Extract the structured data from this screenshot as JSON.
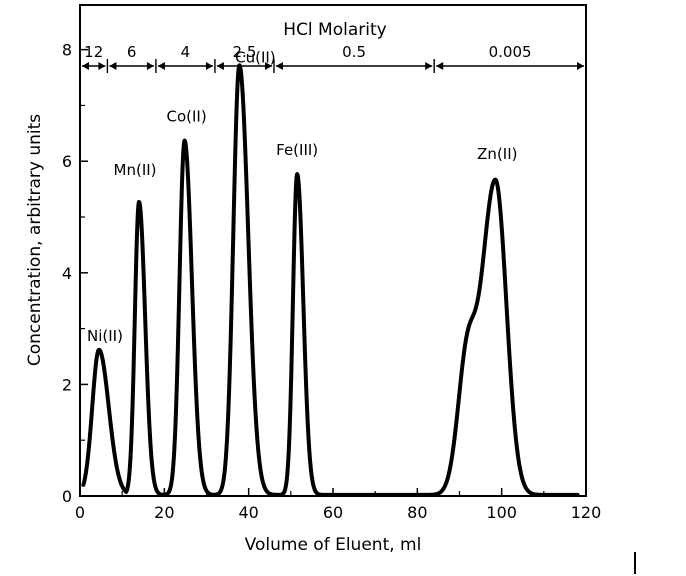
{
  "chart_data": {
    "type": "line",
    "title": "",
    "xlabel": "Volume of Eluent, ml",
    "ylabel": "Concentration, arbitrary units",
    "xlim": [
      0,
      120
    ],
    "ylim": [
      0,
      8.8
    ],
    "x_ticks": [
      0,
      20,
      40,
      60,
      80,
      100,
      120
    ],
    "y_ticks": [
      0,
      2,
      4,
      6,
      8
    ],
    "grid": false,
    "top_axis": {
      "title": "HCl Molarity",
      "segments": [
        {
          "label": "12",
          "start": 0,
          "end": 6.5
        },
        {
          "label": "6",
          "start": 6.5,
          "end": 18
        },
        {
          "label": "4",
          "start": 18,
          "end": 32
        },
        {
          "label": "2.5",
          "start": 32,
          "end": 46
        },
        {
          "label": "0.5",
          "start": 46,
          "end": 84
        },
        {
          "label": "0.005",
          "start": 84,
          "end": 120
        }
      ]
    },
    "series": [
      {
        "color": "#000000",
        "peaks": [
          {
            "label": "Ni(II)",
            "x": 4.5,
            "y": 2.6,
            "width": 1.6,
            "shape": "sharp"
          },
          {
            "label": "Mn(II)",
            "x": 14.0,
            "y": 5.25,
            "width": 1.0,
            "shape": "sharp"
          },
          {
            "label": "Co(II)",
            "x": 24.8,
            "y": 6.35,
            "width": 1.2,
            "shape": "sharp"
          },
          {
            "label": "Cu(II)",
            "x": 37.8,
            "y": 7.7,
            "width": 1.45,
            "shape": "sharp"
          },
          {
            "label": "Fe(III)",
            "x": 51.5,
            "y": 5.75,
            "width": 1.0,
            "shape": "sharp"
          },
          {
            "label": "Zn(II)",
            "x": 98.5,
            "y": 5.65,
            "width": 3.5,
            "shape": "broad"
          }
        ]
      }
    ]
  },
  "page": {
    "cursor_mark_name": "text-cursor"
  }
}
